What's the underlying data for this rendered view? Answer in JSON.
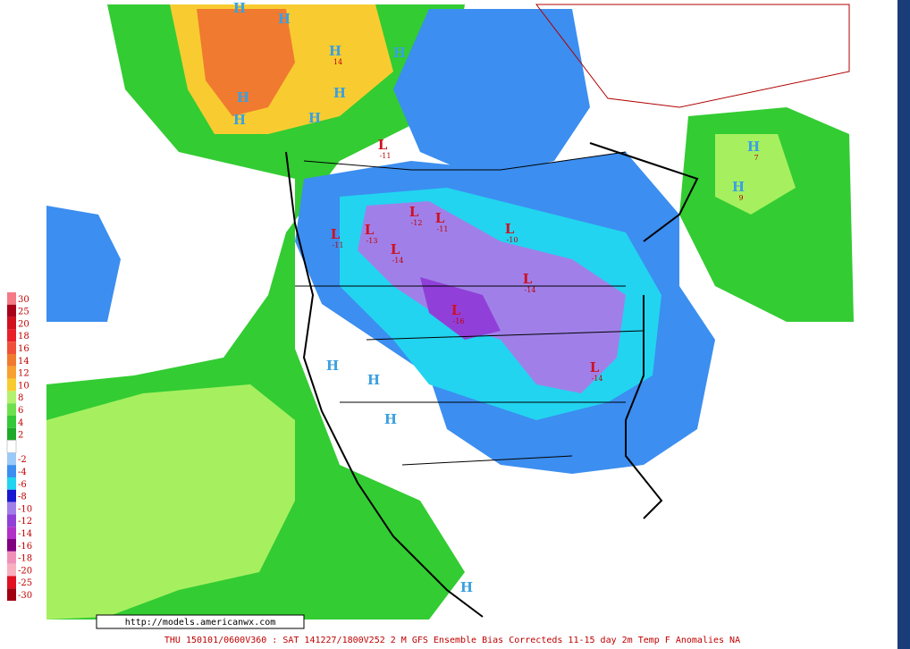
{
  "legend": {
    "warm": [
      {
        "label": "30",
        "color": "#f47a86"
      },
      {
        "label": "25",
        "color": "#a80018"
      },
      {
        "label": "20",
        "color": "#d0101e"
      },
      {
        "label": "18",
        "color": "#e8202a"
      },
      {
        "label": "16",
        "color": "#f0503a"
      },
      {
        "label": "14",
        "color": "#f07a30"
      },
      {
        "label": "12",
        "color": "#f8a030"
      },
      {
        "label": "10",
        "color": "#f8cc30"
      },
      {
        "label": "8",
        "color": "#b4f070"
      },
      {
        "label": "6",
        "color": "#6ee050"
      },
      {
        "label": "4",
        "color": "#34c838"
      },
      {
        "label": "2",
        "color": "#20a828"
      }
    ],
    "cold": [
      {
        "label": "-2",
        "color": "#9ccaf8"
      },
      {
        "label": "-4",
        "color": "#3c8ef0"
      },
      {
        "label": "-6",
        "color": "#22d4f0"
      },
      {
        "label": "-8",
        "color": "#1818d0"
      },
      {
        "label": "-10",
        "color": "#a080e8"
      },
      {
        "label": "-12",
        "color": "#9040d8"
      },
      {
        "label": "-14",
        "color": "#b030c8"
      },
      {
        "label": "-16",
        "color": "#800080"
      },
      {
        "label": "-18",
        "color": "#f090b8"
      },
      {
        "label": "-20",
        "color": "#f8b0c0"
      },
      {
        "label": "-25",
        "color": "#e01020"
      },
      {
        "label": "-30",
        "color": "#a00010"
      }
    ]
  },
  "markers": [
    {
      "symbol": "H"
    },
    {
      "symbol": "H"
    },
    {
      "symbol": "H",
      "value": 14
    },
    {
      "symbol": "H"
    },
    {
      "symbol": "H"
    },
    {
      "symbol": "H"
    },
    {
      "symbol": "H"
    },
    {
      "symbol": "H"
    },
    {
      "symbol": "L",
      "value": -11
    },
    {
      "symbol": "L",
      "value": -11
    },
    {
      "symbol": "L",
      "value": -13
    },
    {
      "symbol": "L",
      "value": -14
    },
    {
      "symbol": "L",
      "value": -12
    },
    {
      "symbol": "L",
      "value": -11
    },
    {
      "symbol": "L",
      "value": -10
    },
    {
      "symbol": "L",
      "value": -14
    },
    {
      "symbol": "L",
      "value": -16
    },
    {
      "symbol": "L",
      "value": -14
    },
    {
      "symbol": "H"
    },
    {
      "symbol": "H"
    },
    {
      "symbol": "H"
    },
    {
      "symbol": "H",
      "value": 7
    },
    {
      "symbol": "H",
      "value": 9
    },
    {
      "symbol": "H"
    }
  ],
  "url": "http://models.americanwx.com",
  "caption": "THU 150101/0600V360 : SAT 141227/1800V252  2 M GFS Ensemble Bias Correcteds 11-15 day 2m Temp F Anomalies NA"
}
